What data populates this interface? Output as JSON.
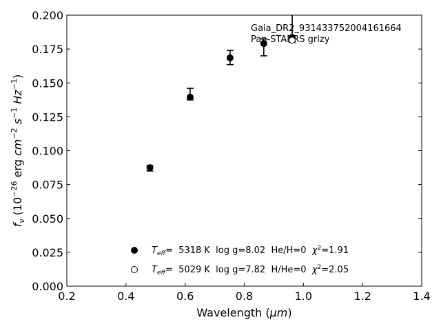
{
  "chart_data": {
    "type": "scatter",
    "x_label": {
      "base": "Wavelength (",
      "unit": "μm",
      "close": ")"
    },
    "y_label": {
      "f": "f",
      "nu": "ν",
      "pre": " (10",
      "e26": "−26",
      "erg": " erg ",
      "cm": "cm",
      "cm_exp": "−2",
      "s": " s",
      "s_exp": "−1",
      "hz": " Hz",
      "hz_exp": "−1",
      "close": ")"
    },
    "xlim": [
      0.2,
      1.4
    ],
    "ylim": [
      0.0,
      0.2
    ],
    "x_ticks": [
      0.2,
      0.4,
      0.6,
      0.8,
      1.0,
      1.2,
      1.4
    ],
    "x_tick_labels": [
      "0.2",
      "0.4",
      "0.6",
      "0.8",
      "1.0",
      "1.2",
      "1.4"
    ],
    "y_ticks": [
      0.0,
      0.025,
      0.05,
      0.075,
      0.1,
      0.125,
      0.15,
      0.175,
      0.2
    ],
    "y_tick_labels": [
      "0.000",
      "0.025",
      "0.050",
      "0.075",
      "0.100",
      "0.125",
      "0.150",
      "0.175",
      "0.200"
    ],
    "annotation_lines": [
      "Gaia_DR2_931433752004161664",
      "Pan-STARRS grizy"
    ],
    "observed": {
      "x": [
        0.481,
        0.617,
        0.752,
        0.866,
        0.962
      ],
      "y": [
        0.0875,
        0.1395,
        0.1685,
        0.179,
        0.1835
      ],
      "y_err_low": [
        0.0025,
        0.002,
        0.005,
        0.009,
        0.0035
      ],
      "y_err_high": [
        0.0015,
        0.0065,
        0.0055,
        0.0035,
        0.0195
      ]
    },
    "models": [
      {
        "marker": "filled",
        "teff_label": "T",
        "teff_sub": "eff",
        "text": "=  5318 K  log g=8.02  He/H=0  ",
        "chi_label": "χ",
        "chi_sup": "2",
        "chi_val": "=1.91",
        "x": [
          0.481,
          0.617,
          0.752,
          0.866,
          0.962
        ],
        "y": [
          0.0875,
          0.1395,
          0.1685,
          0.179,
          0.1835
        ]
      },
      {
        "marker": "open",
        "teff_label": "T",
        "teff_sub": "eff",
        "text": "=  5029 K  log g=7.82  H/He=0  ",
        "chi_label": "χ",
        "chi_sup": "2",
        "chi_val": "=2.05",
        "x": [
          0.962
        ],
        "y": [
          0.1815
        ]
      }
    ],
    "legend_position": "lower-center",
    "grid": false
  }
}
